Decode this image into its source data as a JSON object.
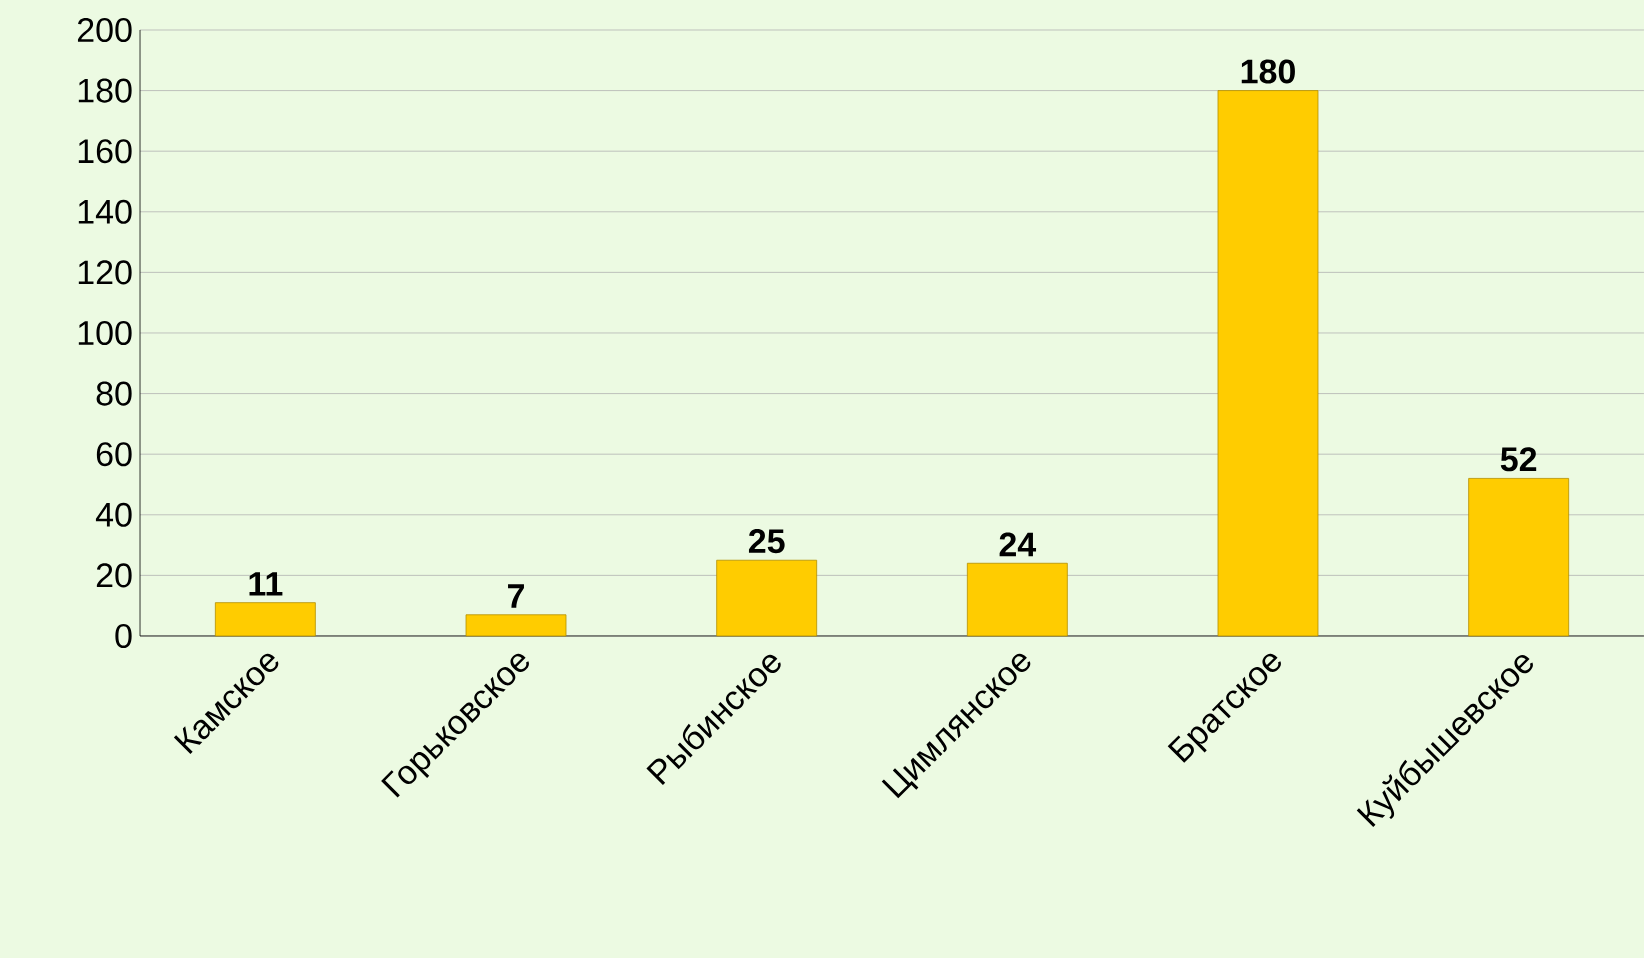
{
  "chart_data": {
    "type": "bar",
    "categories": [
      "Камское",
      "Горьковское",
      "Рыбинское",
      "Цимлянское",
      "Братское",
      "Куйбышевское"
    ],
    "values": [
      11,
      7,
      25,
      24,
      180,
      52
    ],
    "color": "#ffcc00",
    "ylim": [
      0,
      200
    ],
    "yticks": [
      0,
      20,
      40,
      60,
      80,
      100,
      120,
      140,
      160,
      180,
      200
    ],
    "grid": "y",
    "data_labels": true
  }
}
